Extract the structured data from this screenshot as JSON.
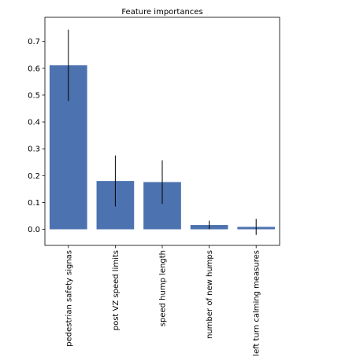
{
  "chart_data": {
    "type": "bar",
    "title": "Feature importances",
    "xlabel": "",
    "ylabel": "",
    "categories": [
      "pedestrian safety signas",
      "post VZ speed limits",
      "speed hump length",
      "number of new humps",
      "left turn calming measures"
    ],
    "values": [
      0.611,
      0.18,
      0.176,
      0.016,
      0.009
    ],
    "error": [
      0.133,
      0.095,
      0.081,
      0.016,
      0.03
    ],
    "ylim": [
      -0.06,
      0.79
    ],
    "yticks": [
      0.0,
      0.1,
      0.2,
      0.3,
      0.4,
      0.5,
      0.6,
      0.7
    ],
    "ytick_labels": [
      "0.0",
      "0.1",
      "0.2",
      "0.3",
      "0.4",
      "0.5",
      "0.6",
      "0.7"
    ],
    "grid": false,
    "colors": {
      "bar": "#4c72b0",
      "errorbar": "#000000",
      "axes": "#000000"
    }
  }
}
